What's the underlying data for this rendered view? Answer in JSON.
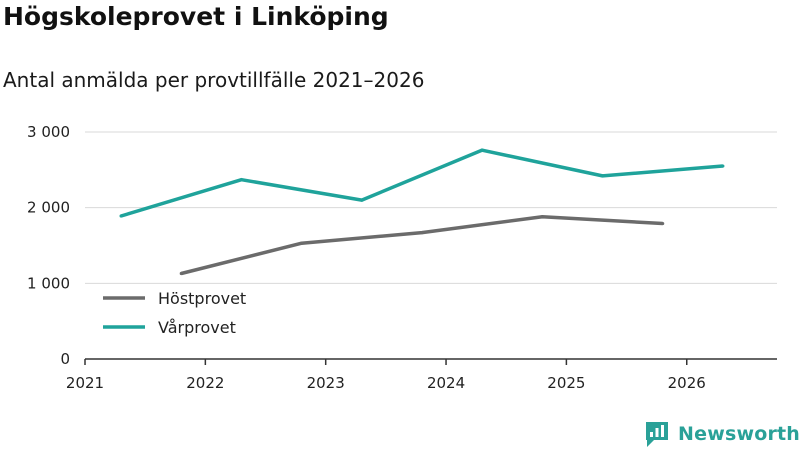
{
  "brand": {
    "name": "Newsworthy",
    "color": "#2aa198"
  },
  "chart_data": {
    "type": "line",
    "title": "Högskoleprovet i Linköping",
    "subtitle": "Antal anmälda per provtillfälle 2021–2026",
    "xlabel": "",
    "ylabel": "",
    "xlim": [
      2021.0,
      2026.75
    ],
    "ylim": [
      0,
      3000
    ],
    "x_ticks": [
      "2021",
      "2022",
      "2023",
      "2024",
      "2025",
      "2026"
    ],
    "y_ticks": [
      {
        "value": 0,
        "label": "0"
      },
      {
        "value": 1000,
        "label": "1 000"
      },
      {
        "value": 2000,
        "label": "2 000"
      },
      {
        "value": 3000,
        "label": "3 000"
      }
    ],
    "grid": "horizontal",
    "legend_position": "bottom-left",
    "series": [
      {
        "name": "Höstprovet",
        "color": "#6b6b6b",
        "x": [
          2021.8,
          2022.8,
          2023.8,
          2024.8,
          2025.8
        ],
        "values": [
          1130,
          1530,
          1670,
          1880,
          1790
        ]
      },
      {
        "name": "Vårprovet",
        "color": "#1fa39b",
        "x": [
          2021.3,
          2022.3,
          2023.3,
          2024.3,
          2025.3,
          2026.3
        ],
        "values": [
          1890,
          2370,
          2100,
          2760,
          2420,
          2550
        ]
      }
    ]
  }
}
